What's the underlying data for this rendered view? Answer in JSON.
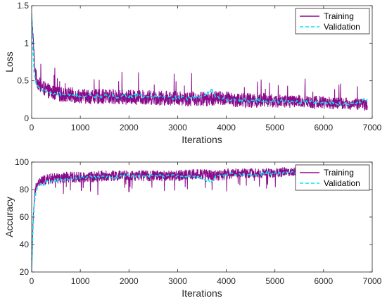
{
  "chart_data": [
    {
      "type": "line",
      "xlabel": "Iterations",
      "ylabel": "Loss",
      "xlim": [
        0,
        7000
      ],
      "ylim": [
        0,
        1.5
      ],
      "xticks": [
        "0",
        "1000",
        "2000",
        "3000",
        "4000",
        "5000",
        "6000",
        "7000"
      ],
      "yticks": [
        "0",
        "0.5",
        "1",
        "1.5"
      ],
      "grid": false,
      "legend_position": "top-right",
      "series": [
        {
          "name": "Training",
          "color": "#8B0A8B",
          "style": "solid",
          "x": [
            0,
            20,
            40,
            60,
            80,
            100,
            150,
            200,
            300,
            400,
            500,
            600,
            700,
            800,
            900,
            1000,
            1200,
            1400,
            1600,
            1800,
            2000,
            2200,
            2400,
            2600,
            2800,
            3000,
            3200,
            3400,
            3600,
            3800,
            4000,
            4200,
            4400,
            4600,
            4800,
            5000,
            5200,
            5400,
            5600,
            5800,
            6000,
            6200,
            6400,
            6600,
            6800,
            6900
          ],
          "values": [
            1.35,
            1.2,
            0.95,
            0.72,
            0.6,
            0.52,
            0.46,
            0.42,
            0.38,
            0.35,
            0.33,
            0.32,
            0.31,
            0.31,
            0.3,
            0.3,
            0.29,
            0.29,
            0.29,
            0.28,
            0.28,
            0.28,
            0.28,
            0.27,
            0.27,
            0.27,
            0.26,
            0.26,
            0.26,
            0.27,
            0.26,
            0.25,
            0.24,
            0.24,
            0.24,
            0.23,
            0.23,
            0.22,
            0.22,
            0.22,
            0.21,
            0.2,
            0.2,
            0.19,
            0.19,
            0.19
          ],
          "noise": [
            0.02,
            0.06,
            0.08,
            0.09,
            0.1,
            0.1,
            0.1,
            0.1,
            0.1,
            0.1,
            0.1,
            0.1,
            0.1,
            0.11,
            0.1,
            0.1,
            0.1,
            0.1,
            0.1,
            0.1,
            0.1,
            0.1,
            0.1,
            0.1,
            0.1,
            0.1,
            0.1,
            0.1,
            0.1,
            0.1,
            0.1,
            0.1,
            0.1,
            0.1,
            0.1,
            0.09,
            0.09,
            0.09,
            0.09,
            0.09,
            0.09,
            0.08,
            0.08,
            0.08,
            0.08,
            0.08
          ]
        },
        {
          "name": "Validation",
          "color": "#00E5EE",
          "style": "dashed",
          "x": [
            0,
            20,
            50,
            100,
            200,
            400,
            800,
            1200,
            1600,
            2000,
            2500,
            3000,
            3400,
            3700,
            3800,
            4000,
            4500,
            5000,
            5500,
            6000,
            6500,
            6900
          ],
          "values": [
            1.4,
            1.0,
            0.6,
            0.45,
            0.38,
            0.33,
            0.3,
            0.3,
            0.29,
            0.3,
            0.29,
            0.27,
            0.27,
            0.38,
            0.28,
            0.26,
            0.24,
            0.23,
            0.22,
            0.21,
            0.19,
            0.25
          ]
        }
      ]
    },
    {
      "type": "line",
      "xlabel": "Iterations",
      "ylabel": "Accuracy",
      "xlim": [
        0,
        7000
      ],
      "ylim": [
        20,
        100
      ],
      "xticks": [
        "0",
        "1000",
        "2000",
        "3000",
        "4000",
        "5000",
        "6000",
        "7000"
      ],
      "yticks": [
        "20",
        "40",
        "60",
        "80",
        "100"
      ],
      "grid": false,
      "legend_position": "top-right",
      "series": [
        {
          "name": "Training",
          "color": "#8B0A8B",
          "style": "solid",
          "x": [
            0,
            20,
            40,
            60,
            80,
            100,
            150,
            200,
            300,
            400,
            500,
            600,
            700,
            800,
            900,
            1000,
            1200,
            1400,
            1600,
            1800,
            2000,
            2200,
            2400,
            2600,
            2800,
            3000,
            3200,
            3400,
            3600,
            3800,
            4000,
            4200,
            4400,
            4600,
            4800,
            5000,
            5200,
            5400,
            5600,
            5800,
            6000,
            6200,
            6400,
            6600,
            6800,
            6900
          ],
          "values": [
            22,
            45,
            65,
            75,
            80,
            83,
            85,
            86,
            87,
            88,
            88,
            88,
            89,
            89,
            89,
            89,
            89,
            90,
            90,
            90,
            90,
            90,
            90,
            90,
            90,
            90,
            91,
            91,
            91,
            90,
            91,
            92,
            92,
            92,
            92,
            92,
            93,
            93,
            93,
            93,
            93,
            93,
            94,
            94,
            94,
            94
          ],
          "noise": [
            1,
            3,
            4,
            4,
            4,
            4,
            4,
            4,
            4,
            4,
            4,
            4,
            4,
            4,
            4,
            4,
            4,
            4,
            4,
            4,
            4,
            4,
            4,
            4,
            4,
            4,
            4,
            4,
            4,
            4,
            4,
            3.5,
            3.5,
            3.5,
            3.5,
            3.5,
            3.5,
            3,
            3,
            3,
            3,
            3,
            3,
            3,
            3,
            3
          ]
        },
        {
          "name": "Validation",
          "color": "#00E5EE",
          "style": "dashed",
          "x": [
            0,
            20,
            50,
            100,
            200,
            400,
            800,
            1200,
            1600,
            2000,
            2500,
            3000,
            3400,
            3700,
            3800,
            4000,
            4500,
            5000,
            5500,
            6000,
            6500,
            6900
          ],
          "values": [
            22,
            45,
            70,
            80,
            84,
            86,
            88,
            89,
            89,
            90,
            90,
            90,
            90,
            85,
            90,
            91,
            91,
            92,
            92,
            92,
            93,
            93
          ]
        }
      ]
    }
  ]
}
